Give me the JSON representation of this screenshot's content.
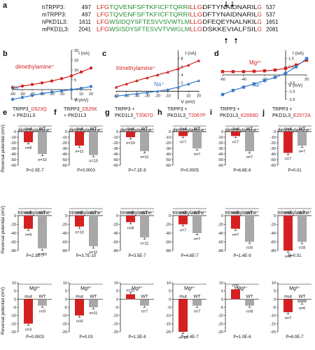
{
  "colors": {
    "red": "#d42020",
    "blue": "#3a7cc6",
    "gray": "#a8a8a8",
    "green": "#1f8f2f",
    "black": "#111111"
  },
  "panel_a": {
    "label": "a",
    "rows": [
      {
        "name": "hTRPP3:",
        "start": "497",
        "end": "537",
        "seg": [
          [
            "LFG",
            "r"
          ],
          [
            "TQVENFSFTKFICFTQRRI",
            "g"
          ],
          [
            "LLG",
            "r"
          ],
          [
            "DFTYNAIDNARIL",
            "k"
          ],
          [
            "G",
            "r"
          ]
        ]
      },
      {
        "name": "mTRPP3:",
        "start": "497",
        "end": "537",
        "seg": [
          [
            "LFG",
            "r"
          ],
          [
            "TQVENFSFTKFICFTQRRI",
            "g"
          ],
          [
            "LLG",
            "r"
          ],
          [
            "DFTYNAIDNARIL",
            "k"
          ],
          [
            "G",
            "r"
          ]
        ]
      },
      {
        "name": "hPKD1L3:",
        "start": "1611",
        "end": "1651",
        "seg": [
          [
            "LFG",
            "r"
          ],
          [
            "WSIDQYSFTESVVSVWTLM",
            "g"
          ],
          [
            "LLG",
            "r"
          ],
          [
            "DFEQEYNALNKIL",
            "k"
          ],
          [
            "G",
            "r"
          ]
        ]
      },
      {
        "name": "mPKD1L3:",
        "start": "2041",
        "end": "2081",
        "seg": [
          [
            "LFG",
            "r"
          ],
          [
            "WSISDYSFTESVVTVWGLM",
            "g"
          ],
          [
            "LLG",
            "r"
          ],
          [
            "DSKKEVIALFSIL",
            "k"
          ],
          [
            "G",
            "r"
          ]
        ]
      }
    ]
  },
  "chart_data": [
    {
      "panel": "b",
      "type": "line",
      "xlabel": "V (mV)",
      "ylabel": "I (nA)",
      "xlim": [
        -60,
        20
      ],
      "ylim": [
        -5,
        20
      ],
      "xticks": [
        "-60",
        "-50",
        "-40",
        "-30",
        "-20",
        "-10",
        "10",
        "20"
      ],
      "yticks": [
        "-5",
        "5",
        "10",
        "15",
        "20"
      ],
      "series": [
        {
          "name": "dimethylamine⁺",
          "color": "red",
          "x": [
            -60,
            -50,
            -40,
            -30,
            -20,
            -10,
            0,
            10,
            20
          ],
          "y": [
            1,
            1.8,
            2.6,
            3.4,
            4.4,
            5.6,
            7.0,
            9.0,
            11.0
          ]
        },
        {
          "name": "Na⁺",
          "color": "blue",
          "x": [
            -60,
            -50,
            -40,
            -30,
            -20,
            -10,
            0,
            10,
            20
          ],
          "y": [
            -5,
            -4,
            -3,
            -2,
            -1.3,
            -0.7,
            0,
            0.7,
            1.6
          ]
        }
      ]
    },
    {
      "panel": "c",
      "type": "line",
      "xlabel": "V (mV)",
      "ylabel": "I (nA)",
      "xlim": [
        -60,
        20
      ],
      "ylim": [
        -2,
        10
      ],
      "xticks": [
        "-60",
        "-50",
        "-40",
        "-30",
        "-20",
        "-10",
        "10",
        "20"
      ],
      "yticks": [
        "2",
        "4",
        "6",
        "8"
      ],
      "series": [
        {
          "name": "trimethylamine⁺",
          "color": "red",
          "x": [
            -60,
            -50,
            -40,
            -30,
            -20,
            -10,
            0,
            10,
            20
          ],
          "y": [
            1,
            1.8,
            2.6,
            3.3,
            4.0,
            4.7,
            5.5,
            6.4,
            7.5
          ]
        },
        {
          "name": "Na⁺",
          "color": "blue",
          "x": [
            -60,
            -50,
            -40,
            -30,
            -20,
            -10,
            0,
            10,
            20
          ],
          "y": [
            -1.2,
            -0.9,
            -0.6,
            -0.3,
            0,
            0.4,
            1.0,
            1.8,
            2.6
          ]
        }
      ]
    },
    {
      "panel": "d",
      "type": "line",
      "xlabel": "V (mV)",
      "ylabel": "I (nA)",
      "xlim": [
        -60,
        20
      ],
      "ylim": [
        -1.5,
        1.5
      ],
      "xticks": [
        "-60",
        "-40",
        "-20",
        "20"
      ],
      "yticks": [
        "1.0",
        "0.5",
        "-0.5",
        "-1.0",
        "-1.5"
      ],
      "series": [
        {
          "name": "Mg²⁺",
          "color": "red",
          "x": [
            -60,
            -50,
            -40,
            -30,
            -20,
            -10,
            0,
            10,
            20
          ],
          "y": [
            0.2,
            0.2,
            0.2,
            0.22,
            0.25,
            0.3,
            0.4,
            0.6,
            0.9
          ]
        },
        {
          "name": "Na⁺",
          "color": "blue",
          "x": [
            -60,
            -50,
            -40,
            -30,
            -20,
            -10,
            0,
            10,
            20
          ],
          "y": [
            -1.2,
            -0.95,
            -0.75,
            -0.55,
            -0.35,
            -0.15,
            0.1,
            0.5,
            1.0
          ]
        }
      ]
    }
  ],
  "bar_panels": {
    "ylabel": "Reversal potential (mV)",
    "mut_label": "mut",
    "wt_label": "WT",
    "row_titles": [
      "dimethylamine⁺",
      "trimethylamine⁺",
      "Mg²⁺"
    ],
    "columns": [
      {
        "label": "e",
        "title1": "TRPP3_",
        "title_red": "D523Q",
        "title2": "+ PKD1L3",
        "bars": [
          {
            "yticks": [
              "0",
              "-10",
              "-20",
              "-30",
              "-40",
              "-50",
              "-60"
            ],
            "ymin": -60,
            "ymax": 0,
            "mut": -19,
            "wt": -40,
            "n_mut": "n=8",
            "n_wt": "n=10",
            "p": "P=2.0E-7"
          },
          {
            "yticks": [
              "0",
              "-20",
              "-40",
              "-60",
              "-80"
            ],
            "ymin": -80,
            "ymax": 0,
            "mut": -30,
            "wt": -75,
            "n_mut": "n=9",
            "n_wt": "n=10",
            "p": "P=2.3E-7"
          },
          {
            "yticks": [
              "10",
              "5",
              "0",
              "-5",
              "-10",
              "-15",
              "-20"
            ],
            "ymin": -20,
            "ymax": 10,
            "mut": -15,
            "wt": -4,
            "n_mut": "n=3",
            "n_wt": "n=9",
            "p": "P=0.0003"
          }
        ]
      },
      {
        "label": "f",
        "title1": "TRPP3_",
        "title_red": "D525K",
        "title2": "+ PKD1L3",
        "bars": [
          {
            "yticks": [
              "0",
              "-10",
              "-20",
              "-30",
              "-40",
              "-50",
              "-60"
            ],
            "ymin": -60,
            "ymax": 0,
            "mut": -25,
            "wt": -42,
            "n_mut": "n=11",
            "n_wt": "n=13",
            "p": "P=0.0003"
          },
          {
            "yticks": [
              "0",
              "-20",
              "-40",
              "-60",
              "-80"
            ],
            "ymin": -80,
            "ymax": 0,
            "mut": -25,
            "wt": -70,
            "n_mut": "n=10",
            "n_wt": "n=11",
            "p": "P=3.7E-10"
          },
          {
            "yticks": [
              "10",
              "5",
              "0",
              "-5",
              "-10",
              "-15",
              "-20"
            ],
            "ymin": -20,
            "ymax": 10,
            "mut": -10,
            "wt": -5,
            "n_mut": "n=8",
            "n_wt": "n=11",
            "p": "P=0.03"
          }
        ]
      },
      {
        "label": "g",
        "title1": "TRPP3 +",
        "title_red": "",
        "title2": "PKD1L3_",
        "title_red2": "T2067D",
        "bars": [
          {
            "yticks": [
              "0",
              "-10",
              "-20",
              "-30",
              "-40",
              "-50",
              "-60"
            ],
            "ymin": -60,
            "ymax": 0,
            "mut": -10,
            "wt": -35,
            "n_mut": "n=10",
            "n_wt": "n=11",
            "p": "P=7.1E-8"
          },
          {
            "yticks": [
              "0",
              "-20",
              "-40",
              "-60",
              "-80"
            ],
            "ymin": -80,
            "ymax": 0,
            "mut": -15,
            "wt": -50,
            "n_mut": "n=8",
            "n_wt": "n=11",
            "p": "P=3.5E-7"
          },
          {
            "yticks": [
              "10",
              "5",
              "0",
              "-5",
              "-10",
              "-15",
              "-20"
            ],
            "ymin": -20,
            "ymax": 10,
            "mut": 3,
            "wt": -4,
            "n_mut": "n=11",
            "n_wt": "n=7",
            "p": "P=1.3E-8"
          }
        ]
      },
      {
        "label": "h",
        "title1": "TRPP3 +",
        "title_red": "",
        "title2": "PKD1L3_",
        "title_red2": "T2067P",
        "bars": [
          {
            "yticks": [
              "0",
              "-10",
              "-20",
              "-30",
              "-40",
              "-50",
              "-60"
            ],
            "ymin": -60,
            "ymax": 0,
            "mut": -8,
            "wt": -30,
            "n_mut": "n=7",
            "n_wt": "n=7",
            "p": "P=0.0005"
          },
          {
            "yticks": [
              "0",
              "-20",
              "-40",
              "-60",
              "-80"
            ],
            "ymin": -80,
            "ymax": 0,
            "mut": -20,
            "wt": -40,
            "n_mut": "n=7",
            "n_wt": "n=7",
            "p": "P=4.6E-7"
          },
          {
            "yticks": [
              "10",
              "5",
              "0",
              "-5",
              "-10",
              "-15",
              "-20"
            ],
            "ymin": -20,
            "ymax": 10,
            "mut": -20,
            "wt": -4,
            "n_mut": "n=10",
            "n_wt": "n=7",
            "p": "P=4.4E-7"
          }
        ]
      },
      {
        "label": "i",
        "title1": "TRPP3 +",
        "title_red": "",
        "title2": "PKD1L3_",
        "title_red2": "K2069D",
        "bars": [
          {
            "yticks": [
              "0",
              "-10",
              "-20",
              "-30",
              "-40",
              "-50",
              "-60"
            ],
            "ymin": -60,
            "ymax": 0,
            "mut": -8,
            "wt": -35,
            "n_mut": "n=7",
            "n_wt": "n=7",
            "p": "P=6.6E-6"
          },
          {
            "yticks": [
              "0",
              "-20",
              "-40",
              "-60",
              "-80"
            ],
            "ymin": -80,
            "ymax": 0,
            "mut": -30,
            "wt": -60,
            "n_mut": "n=7",
            "n_wt": "n=6",
            "p": "P=1.4E-9"
          },
          {
            "yticks": [
              "10",
              "5",
              "0",
              "-5",
              "-10",
              "-15",
              "-20"
            ],
            "ymin": -20,
            "ymax": 10,
            "mut": 6,
            "wt": -4,
            "n_mut": "n=6",
            "n_wt": "n=8",
            "p": "P=1.0E-6"
          }
        ]
      },
      {
        "label": "j",
        "title1": "TRPP3 +",
        "title_red": "",
        "title2": "PKD1L3_",
        "title_red2": "E2072A",
        "bars": [
          {
            "yticks": [
              "0",
              "-10",
              "-20",
              "-30",
              "-40",
              "-50",
              "-60"
            ],
            "ymin": -60,
            "ymax": 0,
            "mut": -38,
            "wt": -25,
            "n_mut": "n=7",
            "n_wt": "n=7",
            "p": "P=0.01"
          },
          {
            "yticks": [
              "0",
              "-20",
              "-40",
              "-60",
              "-80"
            ],
            "ymin": -80,
            "ymax": 0,
            "mut": -80,
            "wt": -60,
            "n_mut": "n=8",
            "n_wt": "n=8",
            "p": "P=0.01"
          },
          {
            "yticks": [
              "10",
              "5",
              "0",
              "-5",
              "-10",
              "-15",
              "-20"
            ],
            "ymin": -20,
            "ymax": 10,
            "mut": -8,
            "wt": -2,
            "n_mut": "n=7",
            "n_wt": "n=6",
            "p": "P=8.0E-7"
          }
        ]
      }
    ]
  }
}
